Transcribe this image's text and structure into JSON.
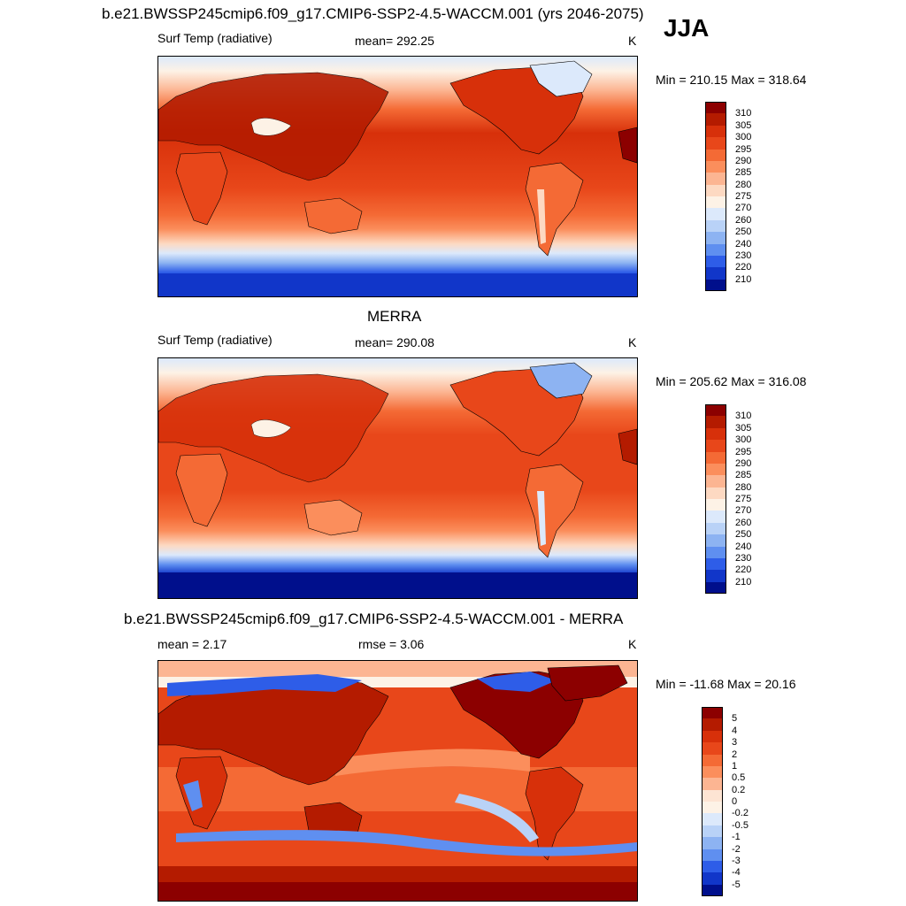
{
  "season": "JJA",
  "panels": [
    {
      "title": "b.e21.BWSSP245cmip6.f09_g17.CMIP6-SSP2-4.5-WACCM.001 (yrs 2046-2075)",
      "left_label": "Surf Temp (radiative)",
      "center_label": "mean= 292.25",
      "units": "K",
      "minmax": "Min = 210.15 Max = 318.64"
    },
    {
      "title": "MERRA",
      "left_label": "Surf Temp (radiative)",
      "center_label": "mean= 290.08",
      "units": "K",
      "minmax": "Min = 205.62 Max = 316.08"
    },
    {
      "title": "b.e21.BWSSP245cmip6.f09_g17.CMIP6-SSP2-4.5-WACCM.001 - MERRA",
      "left_label": "mean =   2.17",
      "center_label": "rmse =   3.06",
      "units": "K",
      "minmax": "Min = -11.68 Max =  20.16"
    }
  ],
  "colorbars": {
    "temp": {
      "labels": [
        "310",
        "305",
        "300",
        "295",
        "290",
        "285",
        "280",
        "275",
        "270",
        "260",
        "250",
        "240",
        "230",
        "220",
        "210"
      ],
      "colors": [
        "#8c0000",
        "#b41b00",
        "#d7300a",
        "#e8471a",
        "#f46a35",
        "#fb8e5c",
        "#fcb592",
        "#fdd9c2",
        "#fdf2e6",
        "#dce9fb",
        "#b9d2f7",
        "#8db3f2",
        "#5f8ff0",
        "#2e5de8",
        "#1136c9",
        "#000f8c"
      ]
    },
    "diff": {
      "labels": [
        "5",
        "4",
        "3",
        "2",
        "1",
        "0.5",
        "0.2",
        "0",
        "-0.2",
        "-0.5",
        "-1",
        "-2",
        "-3",
        "-4",
        "-5"
      ],
      "colors": [
        "#8c0000",
        "#b41b00",
        "#d7300a",
        "#e8471a",
        "#f46a35",
        "#fb8e5c",
        "#fcb592",
        "#fde4d3",
        "#fdf2e6",
        "#dce9fb",
        "#b9d2f7",
        "#8db3f2",
        "#5f8ff0",
        "#2e5de8",
        "#1136c9",
        "#000f8c"
      ]
    }
  }
}
